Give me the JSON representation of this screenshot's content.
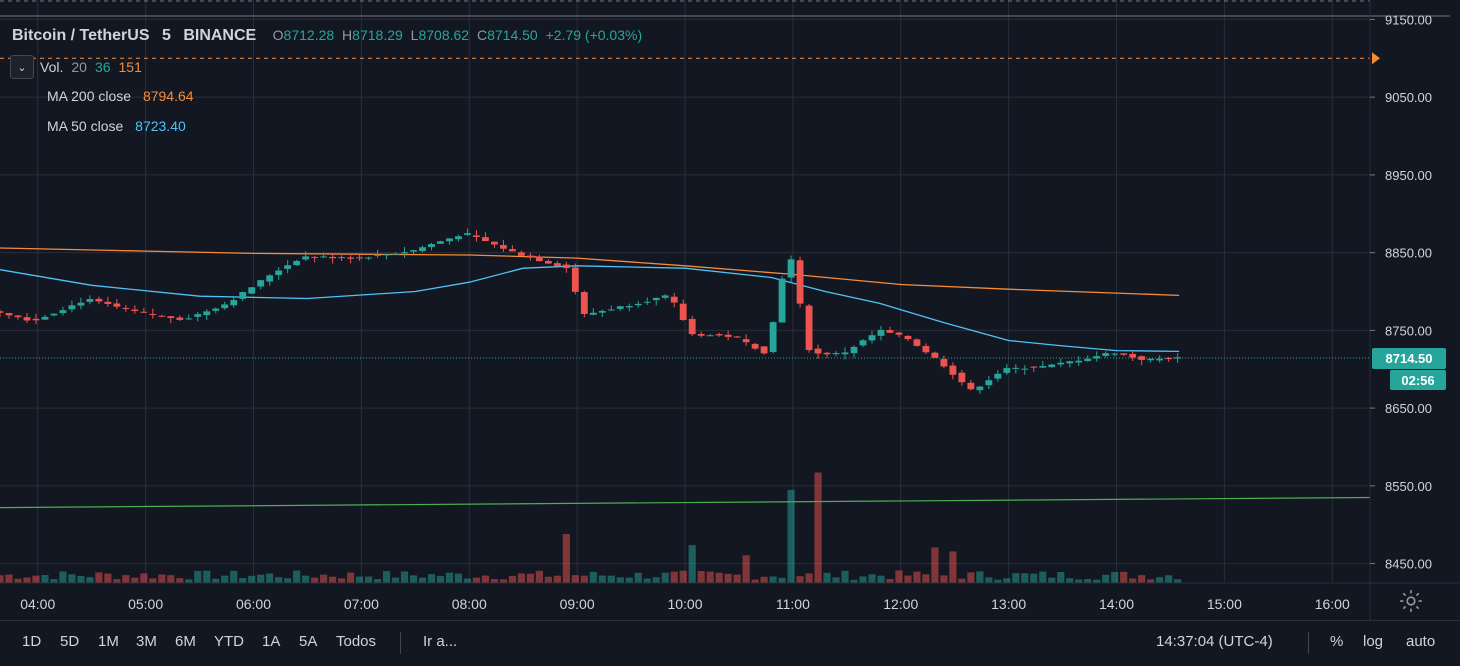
{
  "legend": {
    "symbol": "Bitcoin / TetherUS",
    "interval": "5",
    "exchange": "BINANCE",
    "open_label": "O",
    "open": "8712.28",
    "high_label": "H",
    "high": "8718.29",
    "low_label": "L",
    "low": "8708.62",
    "close_label": "C",
    "close": "8714.50",
    "change": "+2.79 (+0.03%)"
  },
  "vol": {
    "label": "Vol.",
    "p1": "20",
    "p2": "36",
    "p3": "151"
  },
  "ma200": {
    "label": "MA 200 close",
    "value": "8794.64",
    "color": "#f68c3a"
  },
  "ma50": {
    "label": "MA 50 close",
    "value": "8723.40",
    "color": "#4fc3f7"
  },
  "price_badge": "8714.50",
  "countdown_badge": "02:56",
  "bottom": {
    "timeframes": [
      "1D",
      "5D",
      "1M",
      "3M",
      "6M",
      "YTD",
      "1A",
      "5A",
      "Todos"
    ],
    "goto": "Ir a...",
    "clock": "14:37:04 (UTC-4)",
    "percent": "%",
    "log": "log",
    "auto": "auto"
  },
  "chart_data": {
    "type": "candlestick",
    "title": "Bitcoin / TetherUS · 5 · BINANCE",
    "ylim": [
      8425,
      9175
    ],
    "y_ticks": [
      "9150.00",
      "9050.00",
      "8950.00",
      "8850.00",
      "8750.00",
      "8650.00",
      "8550.00",
      "8450.00"
    ],
    "x_ticks": [
      "04:00",
      "05:00",
      "06:00",
      "07:00",
      "08:00",
      "09:00",
      "10:00",
      "11:00",
      "12:00",
      "13:00",
      "14:00",
      "15:00",
      "16:00"
    ],
    "x_range_hours": [
      3.65,
      16.35
    ],
    "alert_line": 9100,
    "green_line": [
      [
        3.65,
        8522
      ],
      [
        16.35,
        8535
      ]
    ],
    "last_price": 8714.5,
    "ma200": [
      [
        3.65,
        8856
      ],
      [
        5,
        8852
      ],
      [
        6,
        8849
      ],
      [
        7,
        8848
      ],
      [
        8,
        8847
      ],
      [
        9,
        8843
      ],
      [
        10,
        8833
      ],
      [
        11,
        8822
      ],
      [
        12,
        8809
      ],
      [
        13,
        8803
      ],
      [
        14,
        8798
      ],
      [
        14.58,
        8795
      ]
    ],
    "ma50": [
      [
        3.65,
        8828
      ],
      [
        4.5,
        8808
      ],
      [
        5.5,
        8794
      ],
      [
        6.5,
        8791
      ],
      [
        7.5,
        8800
      ],
      [
        8,
        8812
      ],
      [
        8.5,
        8830
      ],
      [
        9,
        8833
      ],
      [
        10,
        8830
      ],
      [
        10.8,
        8818
      ],
      [
        11.3,
        8800
      ],
      [
        11.8,
        8785
      ],
      [
        12.4,
        8760
      ],
      [
        13,
        8737
      ],
      [
        13.5,
        8730
      ],
      [
        14,
        8724
      ],
      [
        14.58,
        8723
      ]
    ],
    "price_points": [
      [
        3.65,
        8775
      ],
      [
        4,
        8762
      ],
      [
        4.5,
        8790
      ],
      [
        5,
        8772
      ],
      [
        5.4,
        8764
      ],
      [
        5.8,
        8785
      ],
      [
        6.2,
        8822
      ],
      [
        6.5,
        8845
      ],
      [
        7,
        8843
      ],
      [
        7.5,
        8852
      ],
      [
        8,
        8875
      ],
      [
        8.5,
        8848
      ],
      [
        8.95,
        8830
      ],
      [
        9.1,
        8770
      ],
      [
        9.5,
        8782
      ],
      [
        9.9,
        8795
      ],
      [
        10.1,
        8745
      ],
      [
        10.5,
        8742
      ],
      [
        10.8,
        8720
      ],
      [
        11.0,
        8858
      ],
      [
        11.2,
        8720
      ],
      [
        11.5,
        8720
      ],
      [
        11.85,
        8750
      ],
      [
        12.1,
        8740
      ],
      [
        12.4,
        8710
      ],
      [
        12.7,
        8672
      ],
      [
        13.0,
        8700
      ],
      [
        13.4,
        8704
      ],
      [
        13.8,
        8715
      ],
      [
        14.0,
        8722
      ],
      [
        14.3,
        8712
      ],
      [
        14.58,
        8714.5
      ]
    ],
    "volume_ylim": [
      0,
      190
    ],
    "volume_spikes": [
      [
        8.95,
        62,
        "down"
      ],
      [
        10.05,
        48,
        "up"
      ],
      [
        10.57,
        35,
        "down"
      ],
      [
        10.97,
        118,
        "up"
      ],
      [
        11.23,
        140,
        "down"
      ],
      [
        12.35,
        45,
        "down"
      ],
      [
        12.5,
        40,
        "down"
      ]
    ]
  }
}
